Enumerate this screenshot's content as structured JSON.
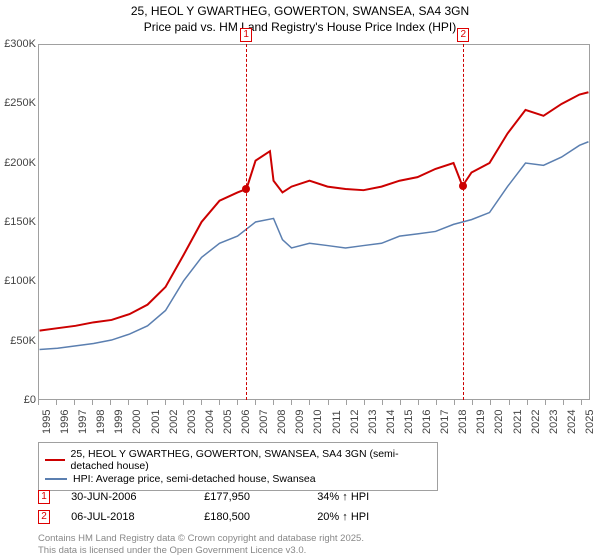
{
  "title_line1": "25, HEOL Y GWARTHEG, GOWERTON, SWANSEA, SA4 3GN",
  "title_line2": "Price paid vs. HM Land Registry's House Price Index (HPI)",
  "chart": {
    "type": "line",
    "xlim": [
      1995,
      2025.5
    ],
    "ylim": [
      0,
      300000
    ],
    "ytick_step": 50000,
    "yticks": [
      0,
      50000,
      100000,
      150000,
      200000,
      250000,
      300000
    ],
    "ytick_labels": [
      "£0",
      "£50K",
      "£100K",
      "£150K",
      "£200K",
      "£250K",
      "£300K"
    ],
    "xticks": [
      1995,
      1996,
      1997,
      1998,
      1999,
      2000,
      2001,
      2002,
      2003,
      2004,
      2005,
      2006,
      2007,
      2008,
      2009,
      2010,
      2011,
      2012,
      2013,
      2014,
      2015,
      2016,
      2017,
      2018,
      2019,
      2020,
      2021,
      2022,
      2023,
      2024,
      2025
    ],
    "background_color": "#ffffff",
    "border_color": "#a0a0a0",
    "grid_color": "#a0a0a0",
    "shaded_region": {
      "xmin": 2006.5,
      "xmax": 2018.5,
      "color": "rgba(200,215,235,0.35)"
    },
    "series": [
      {
        "name": "price_paid",
        "label": "25, HEOL Y GWARTHEG, GOWERTON, SWANSEA, SA4 3GN (semi-detached house)",
        "color": "#cc0000",
        "line_width": 2,
        "x": [
          1995,
          1996,
          1997,
          1998,
          1999,
          2000,
          2001,
          2002,
          2003,
          2004,
          2005,
          2006,
          2006.5,
          2007,
          2007.8,
          2008,
          2008.5,
          2009,
          2010,
          2011,
          2012,
          2013,
          2014,
          2015,
          2016,
          2017,
          2018,
          2018.5,
          2019,
          2020,
          2021,
          2022,
          2023,
          2024,
          2025,
          2025.5
        ],
        "y": [
          58000,
          60000,
          62000,
          65000,
          67000,
          72000,
          80000,
          95000,
          122000,
          150000,
          168000,
          175000,
          177950,
          202000,
          210000,
          185000,
          175000,
          180000,
          185000,
          180000,
          178000,
          177000,
          180000,
          185000,
          188000,
          195000,
          200000,
          180500,
          192000,
          200000,
          225000,
          245000,
          240000,
          250000,
          258000,
          260000
        ]
      },
      {
        "name": "hpi",
        "label": "HPI: Average price, semi-detached house, Swansea",
        "color": "#5b7fb0",
        "line_width": 1.5,
        "x": [
          1995,
          1996,
          1997,
          1998,
          1999,
          2000,
          2001,
          2002,
          2003,
          2004,
          2005,
          2006,
          2007,
          2008,
          2008.5,
          2009,
          2010,
          2011,
          2012,
          2013,
          2014,
          2015,
          2016,
          2017,
          2018,
          2019,
          2020,
          2021,
          2022,
          2023,
          2024,
          2025,
          2025.5
        ],
        "y": [
          42000,
          43000,
          45000,
          47000,
          50000,
          55000,
          62000,
          75000,
          100000,
          120000,
          132000,
          138000,
          150000,
          153000,
          135000,
          128000,
          132000,
          130000,
          128000,
          130000,
          132000,
          138000,
          140000,
          142000,
          148000,
          152000,
          158000,
          180000,
          200000,
          198000,
          205000,
          215000,
          218000
        ]
      }
    ],
    "sale_markers": [
      {
        "id": "1",
        "x": 2006.5,
        "y": 177950,
        "line_color": "#cc0000"
      },
      {
        "id": "2",
        "x": 2018.5,
        "y": 180500,
        "line_color": "#cc0000"
      }
    ],
    "sale_dot_color": "#cc0000"
  },
  "legend": {
    "rows": [
      {
        "color": "#cc0000",
        "width": 2,
        "label": "25, HEOL Y GWARTHEG, GOWERTON, SWANSEA, SA4 3GN (semi-detached house)"
      },
      {
        "color": "#5b7fb0",
        "width": 1.5,
        "label": "HPI: Average price, semi-detached house, Swansea"
      }
    ]
  },
  "sales_table": [
    {
      "marker": "1",
      "date": "30-JUN-2006",
      "price": "£177,950",
      "delta": "34% ↑ HPI"
    },
    {
      "marker": "2",
      "date": "06-JUL-2018",
      "price": "£180,500",
      "delta": "20% ↑ HPI"
    }
  ],
  "attribution_line1": "Contains HM Land Registry data © Crown copyright and database right 2025.",
  "attribution_line2": "This data is licensed under the Open Government Licence v3.0."
}
